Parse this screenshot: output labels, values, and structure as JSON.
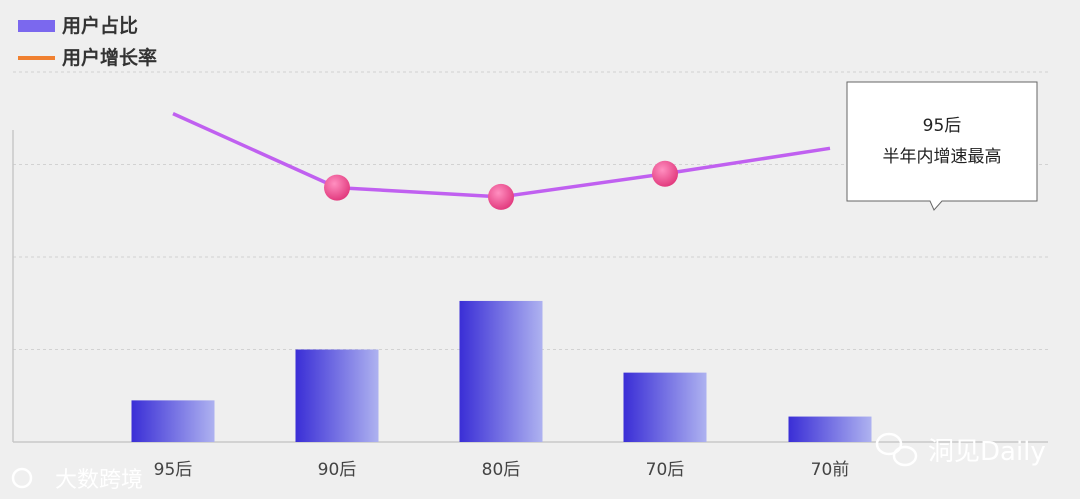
{
  "chart_data": {
    "type": "bar",
    "categories": [
      "95后",
      "90后",
      "80后",
      "70后",
      "70前"
    ],
    "series": [
      {
        "name": "用户占比",
        "kind": "bar",
        "values": [
          0.9,
          2.0,
          3.05,
          1.5,
          0.55
        ],
        "color": "#7b68ee"
      },
      {
        "name": "用户增长率",
        "kind": "line",
        "values": [
          7.1,
          5.5,
          5.3,
          5.8,
          6.35
        ],
        "color": "#c060f0"
      }
    ],
    "ylim": [
      0,
      8
    ],
    "grid": true,
    "legend": "top-left",
    "annotation": {
      "line1": "95后",
      "line2": "半年内增速最高"
    }
  },
  "watermarks": {
    "left": "大数跨境",
    "right": "洞见Daily"
  }
}
